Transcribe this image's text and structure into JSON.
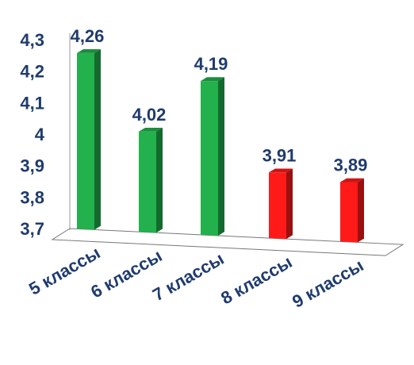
{
  "chart_data": {
    "type": "bar",
    "categories": [
      "5 классы",
      "6 классы",
      "7 классы",
      "8 классы",
      "9 классы"
    ],
    "values": [
      4.26,
      4.02,
      4.19,
      3.91,
      3.89
    ],
    "value_labels": [
      "4,26",
      "4,02",
      "4,19",
      "3,91",
      "3,89"
    ],
    "bar_colors": [
      "#22b14c",
      "#22b14c",
      "#22b14c",
      "#ff1a1a",
      "#ff1a1a"
    ],
    "yticks": [
      3.7,
      3.8,
      3.9,
      4.0,
      4.1,
      4.2,
      4.3
    ],
    "ytick_labels": [
      "3,7",
      "3,8",
      "3,9",
      "4",
      "4,1",
      "4,2",
      "4,3"
    ],
    "ylim": [
      3.7,
      4.3
    ],
    "title": "",
    "xlabel": "",
    "ylabel": "",
    "grid": false,
    "legend": "none"
  }
}
